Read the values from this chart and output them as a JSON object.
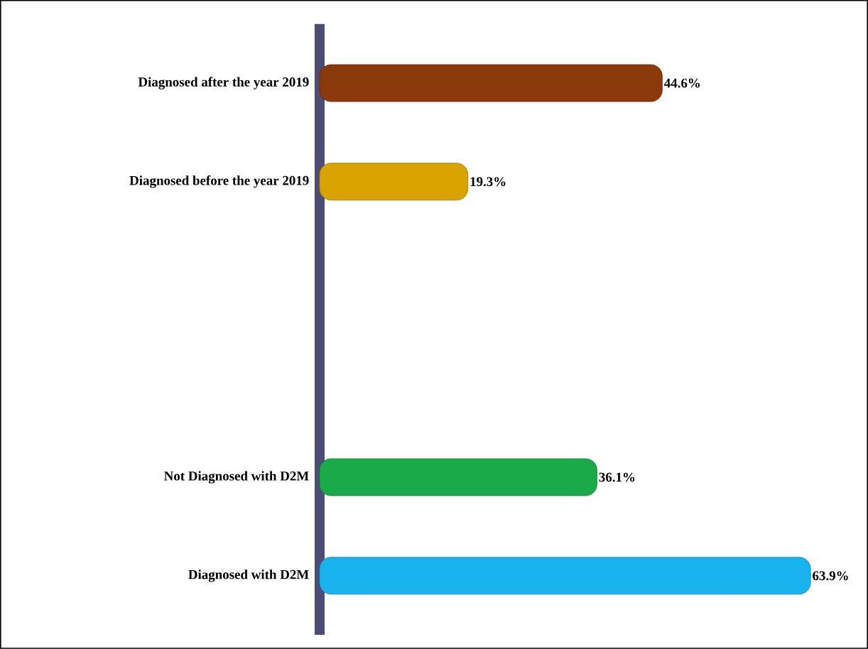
{
  "chart_data": {
    "type": "bar",
    "orientation": "horizontal",
    "categories": [
      "Diagnosed after the year 2019",
      "Diagnosed before the year 2019",
      null,
      null,
      "Not Diagnosed with D2M",
      "Diagnosed with D2M"
    ],
    "values": [
      44.6,
      19.3,
      null,
      null,
      36.1,
      63.9
    ],
    "colors": [
      "#8b3a0c",
      "#d9a400",
      null,
      null,
      "#1aaa4a",
      "#19b4ee"
    ],
    "value_labels": [
      "44.6%",
      "19.3%",
      null,
      null,
      "36.1%",
      "63.9%"
    ]
  }
}
